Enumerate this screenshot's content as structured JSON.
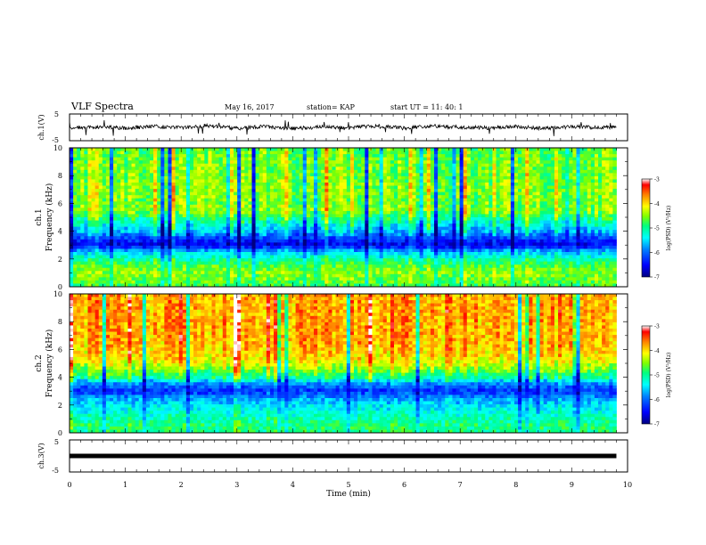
{
  "header": {
    "title": "VLF Spectra",
    "date": "May 16, 2017",
    "station_label": "station= KAP",
    "start_label": "start  UT =   11: 40: 1"
  },
  "colorbar": {
    "label": "log(PSD) (V²/Hz)",
    "ticks": [
      "-3",
      "-4",
      "-5",
      "-6",
      "-7"
    ],
    "colors": [
      "#000080",
      "#0000ff",
      "#0080ff",
      "#00ffff",
      "#00ff80",
      "#80ff00",
      "#ffff00",
      "#ff8000",
      "#ff0000",
      "#ffffff"
    ]
  },
  "chart_data": [
    {
      "type": "line",
      "panel": "ch1-waveform",
      "ylabel": "ch.1(V)",
      "ylim": [
        -5,
        5
      ],
      "yticks": [
        "5",
        "-5"
      ],
      "xlim": [
        0,
        10
      ],
      "note_values": "noisy waveform centred near 0 V, amplitude roughly ±1 V with spikes to about ±3 V",
      "x": [
        0,
        0.5,
        1,
        1.5,
        2,
        2.5,
        3,
        3.5,
        4,
        4.5,
        5,
        5.5,
        6,
        6.5,
        7,
        7.5,
        8,
        8.5,
        9,
        9.5,
        9.8
      ],
      "y": [
        -0.5,
        0.2,
        -0.3,
        0.4,
        -0.2,
        0.6,
        -0.4,
        0.3,
        -0.5,
        0.2,
        -0.1,
        0.5,
        -0.3,
        0.4,
        0.1,
        -0.2,
        0.3,
        -0.4,
        0.2,
        -0.1,
        0.0
      ]
    },
    {
      "type": "heatmap",
      "panel": "ch1-spectrogram",
      "ylabel": "ch.1\nFrequency (kHz)",
      "ylim": [
        0,
        10
      ],
      "yticks": [
        "0",
        "2",
        "4",
        "6",
        "8",
        "10"
      ],
      "xlim": [
        0,
        10
      ],
      "z_range": [
        -7,
        -3
      ],
      "band_profile_freq_khz": [
        0,
        0.5,
        1,
        1.5,
        2,
        2.5,
        3,
        3.5,
        4,
        4.5,
        5,
        5.5,
        6,
        7,
        8,
        9,
        10
      ],
      "band_profile_logpsd": [
        -4.8,
        -4.6,
        -4.5,
        -4.7,
        -5.1,
        -5.6,
        -6.6,
        -6.2,
        -5.7,
        -5.3,
        -4.9,
        -4.5,
        -4.6,
        -4.5,
        -4.6,
        -4.6,
        -4.7
      ]
    },
    {
      "type": "heatmap",
      "panel": "ch2-spectrogram",
      "ylabel": "ch.2\nFrequency (kHz)",
      "ylim": [
        0,
        10
      ],
      "yticks": [
        "0",
        "2",
        "4",
        "6",
        "8",
        "10"
      ],
      "xlim": [
        0,
        10
      ],
      "z_range": [
        -7,
        -3
      ],
      "band_profile_freq_khz": [
        0,
        0.5,
        1,
        1.5,
        2,
        2.5,
        3,
        3.5,
        4,
        4.5,
        5,
        5.5,
        6,
        7,
        8,
        9,
        10
      ],
      "band_profile_logpsd": [
        -5.0,
        -4.9,
        -5.1,
        -5.3,
        -5.5,
        -5.8,
        -6.3,
        -5.9,
        -5.0,
        -4.6,
        -4.2,
        -4.0,
        -3.9,
        -3.8,
        -3.8,
        -3.8,
        -3.8
      ]
    },
    {
      "type": "line",
      "panel": "ch3-waveform",
      "ylabel": "ch.3(V)",
      "ylim": [
        -5,
        5
      ],
      "yticks": [
        "5",
        "-5"
      ],
      "xlim": [
        0,
        10
      ],
      "x": [
        0,
        9.8
      ],
      "y": [
        0,
        0
      ]
    }
  ],
  "x_axis": {
    "label": "Time  (min)",
    "ticks": [
      "0",
      "1",
      "2",
      "3",
      "4",
      "5",
      "6",
      "7",
      "8",
      "9",
      "10"
    ]
  }
}
